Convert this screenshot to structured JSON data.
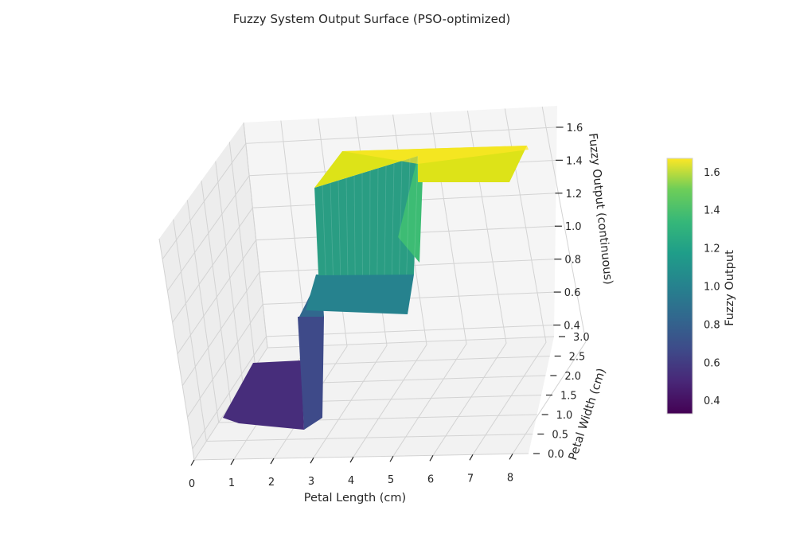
{
  "chart_data": {
    "type": "surface-3d",
    "title": "Fuzzy System Output Surface (PSO-optimized)",
    "xlabel": "Petal Length (cm)",
    "ylabel": "Petal Width (cm)",
    "zlabel": "Fuzzy Output (continuous)",
    "xticks": [
      "0",
      "1",
      "2",
      "3",
      "4",
      "5",
      "6",
      "7",
      "8"
    ],
    "yticks": [
      "0.0",
      "0.5",
      "1.0",
      "1.5",
      "2.0",
      "2.5",
      "3.0"
    ],
    "zticks": [
      "0.4",
      "0.6",
      "0.8",
      "1.0",
      "1.2",
      "1.4",
      "1.6"
    ],
    "xlim": [
      0,
      8.4
    ],
    "ylim": [
      0,
      3.0
    ],
    "zlim": [
      0.4,
      1.6
    ],
    "colormap": "viridis",
    "colorbar": {
      "label": "Fuzzy Output",
      "ticks": [
        "0.4",
        "0.6",
        "0.8",
        "1.0",
        "1.2",
        "1.4",
        "1.6"
      ],
      "range": [
        0.33,
        1.67
      ]
    },
    "surface": {
      "regions": [
        {
          "name": "low plateau",
          "x": [
            0.5,
            2.4
          ],
          "y": [
            0.0,
            1.6
          ],
          "z": 0.35
        },
        {
          "name": "middle plateau",
          "x": [
            2.6,
            5.2
          ],
          "y": [
            0.0,
            1.6
          ],
          "z": 0.88
        },
        {
          "name": "mid-high slope",
          "x": [
            2.6,
            5.2
          ],
          "y": [
            1.6,
            2.2
          ],
          "z": [
            0.88,
            1.2
          ]
        },
        {
          "name": "high plateau",
          "x": [
            2.6,
            8.4
          ],
          "y": [
            1.6,
            3.0
          ],
          "z": 1.63
        }
      ],
      "step_edges": [
        {
          "at": "x = 2.5",
          "from": 0.35,
          "to": 0.88
        },
        {
          "at": "x = 5.2",
          "from": 0.88,
          "to": 1.63
        }
      ]
    }
  }
}
